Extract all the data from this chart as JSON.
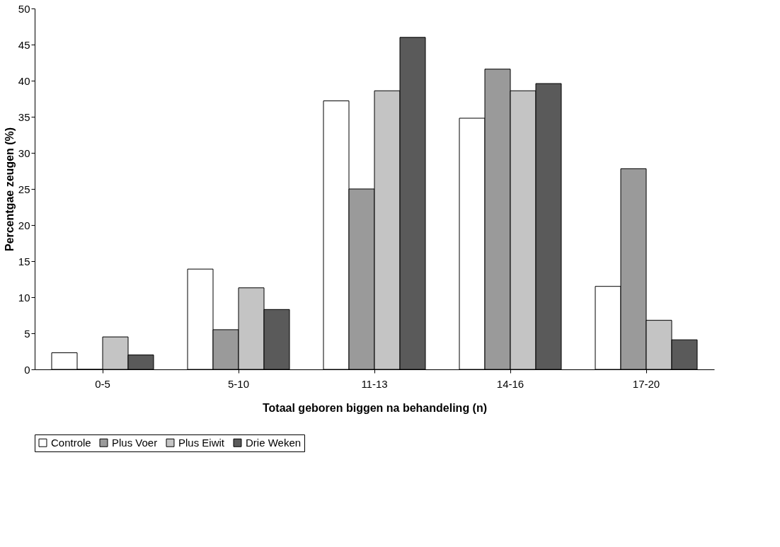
{
  "chart_data": {
    "type": "bar",
    "xlabel": "Totaal geboren biggen na behandeling (n)",
    "ylabel": "Percentgae zeugen (%)",
    "categories": [
      "0-5",
      "5-10",
      "11-13",
      "14-16",
      "17-20"
    ],
    "series": [
      {
        "name": "Controle",
        "color": "#ffffff",
        "values": [
          2.3,
          13.9,
          37.2,
          34.8,
          11.5
        ]
      },
      {
        "name": "Plus Voer",
        "color": "#9a9a9a",
        "values": [
          0,
          5.5,
          25,
          41.6,
          27.8
        ]
      },
      {
        "name": "Plus Eiwit",
        "color": "#c4c4c4",
        "values": [
          4.5,
          11.3,
          38.6,
          38.6,
          6.8
        ]
      },
      {
        "name": "Drie Weken",
        "color": "#5a5a5a",
        "values": [
          2,
          8.3,
          46,
          39.6,
          4.1
        ]
      }
    ],
    "ylim": [
      0,
      50
    ],
    "yticks": [
      0,
      5,
      10,
      15,
      20,
      25,
      30,
      35,
      40,
      45,
      50
    ],
    "grid": false,
    "legend": "bottom"
  }
}
